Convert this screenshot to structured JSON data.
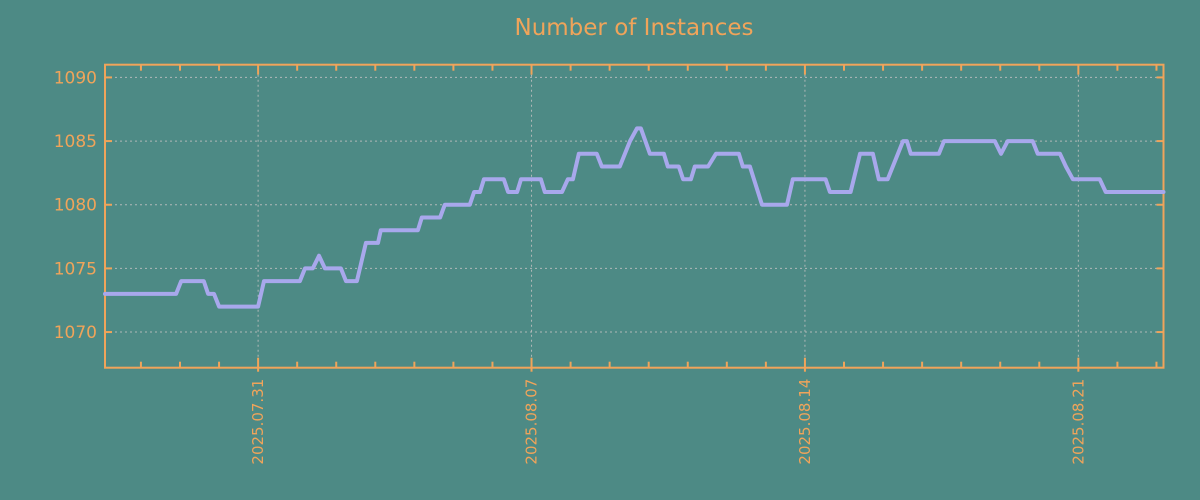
{
  "title": "Number of Instances",
  "colors": {
    "background": "#4d8a85",
    "axis_and_text": "#f0a45a",
    "line": "#a8a8ec",
    "grid": "#b0b8b8"
  },
  "chart_data": {
    "type": "line",
    "title": "Number of Instances",
    "grid": "dotted",
    "legend": "none",
    "y_ticks": [
      1070,
      1075,
      1080,
      1085,
      1090
    ],
    "y_range": [
      1067.2,
      1091.0
    ],
    "x_range_days": [
      0,
      27.1
    ],
    "x_major_ticks": [
      {
        "day": 3.92,
        "label": "2025.07.31"
      },
      {
        "day": 10.92,
        "label": "2025.08.07"
      },
      {
        "day": 17.92,
        "label": "2025.08.14"
      },
      {
        "day": 24.92,
        "label": "2025.08.21"
      }
    ],
    "x_minor_tick_start_day": 0.92,
    "x_minor_tick_interval_days": 1,
    "series": [
      {
        "name": "instances",
        "points": [
          [
            0,
            1073
          ],
          [
            1.82,
            1073
          ],
          [
            1.95,
            1074
          ],
          [
            2.53,
            1074
          ],
          [
            2.64,
            1073
          ],
          [
            2.79,
            1073
          ],
          [
            2.92,
            1072
          ],
          [
            3.92,
            1072
          ],
          [
            4.07,
            1074
          ],
          [
            4.99,
            1074
          ],
          [
            5.12,
            1075
          ],
          [
            5.32,
            1075
          ],
          [
            5.48,
            1076
          ],
          [
            5.63,
            1075
          ],
          [
            6.04,
            1075
          ],
          [
            6.17,
            1074
          ],
          [
            6.45,
            1074
          ],
          [
            6.68,
            1077
          ],
          [
            6.99,
            1077
          ],
          [
            7.06,
            1078
          ],
          [
            8.01,
            1078
          ],
          [
            8.11,
            1079
          ],
          [
            8.58,
            1079
          ],
          [
            8.7,
            1080
          ],
          [
            9.34,
            1080
          ],
          [
            9.45,
            1081
          ],
          [
            9.6,
            1081
          ],
          [
            9.7,
            1082
          ],
          [
            10.21,
            1082
          ],
          [
            10.32,
            1081
          ],
          [
            10.55,
            1081
          ],
          [
            10.65,
            1082
          ],
          [
            11.16,
            1082
          ],
          [
            11.26,
            1081
          ],
          [
            11.7,
            1081
          ],
          [
            11.85,
            1082
          ],
          [
            11.98,
            1082
          ],
          [
            12.13,
            1084
          ],
          [
            12.59,
            1084
          ],
          [
            12.72,
            1083
          ],
          [
            13.18,
            1083
          ],
          [
            13.44,
            1085
          ],
          [
            13.62,
            1086
          ],
          [
            13.72,
            1086
          ],
          [
            13.95,
            1084
          ],
          [
            14.31,
            1084
          ],
          [
            14.41,
            1083
          ],
          [
            14.69,
            1083
          ],
          [
            14.8,
            1082
          ],
          [
            15.0,
            1082
          ],
          [
            15.1,
            1083
          ],
          [
            15.44,
            1083
          ],
          [
            15.64,
            1084
          ],
          [
            16.23,
            1084
          ],
          [
            16.33,
            1083
          ],
          [
            16.51,
            1083
          ],
          [
            16.82,
            1080
          ],
          [
            17.46,
            1080
          ],
          [
            17.61,
            1082
          ],
          [
            18.45,
            1082
          ],
          [
            18.56,
            1081
          ],
          [
            19.09,
            1081
          ],
          [
            19.33,
            1084
          ],
          [
            19.66,
            1084
          ],
          [
            19.81,
            1082
          ],
          [
            20.04,
            1082
          ],
          [
            20.43,
            1085
          ],
          [
            20.53,
            1085
          ],
          [
            20.63,
            1084
          ],
          [
            21.35,
            1084
          ],
          [
            21.48,
            1085
          ],
          [
            22.78,
            1085
          ],
          [
            22.94,
            1084
          ],
          [
            23.11,
            1085
          ],
          [
            23.75,
            1085
          ],
          [
            23.88,
            1084
          ],
          [
            24.45,
            1084
          ],
          [
            24.6,
            1083
          ],
          [
            24.78,
            1082
          ],
          [
            25.47,
            1082
          ],
          [
            25.62,
            1081
          ],
          [
            27.1,
            1081
          ]
        ]
      }
    ]
  }
}
